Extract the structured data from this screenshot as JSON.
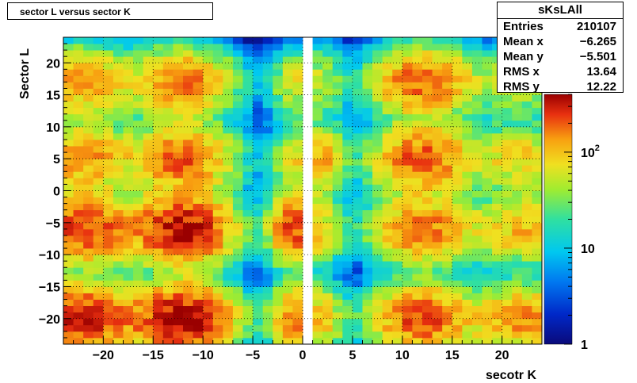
{
  "title": "sector L versus sector K",
  "stats": {
    "name": "sKsLAll",
    "rows": [
      {
        "label": "Entries",
        "value": "210107"
      },
      {
        "label": "Mean x",
        "value": "−6.265"
      },
      {
        "label": "Mean y",
        "value": "−5.501"
      },
      {
        "label": "RMS x",
        "value": "13.64"
      },
      {
        "label": "RMS y",
        "value": "12.22"
      }
    ]
  },
  "chart_data": {
    "type": "heatmap",
    "title": "sector L versus sector K",
    "xlabel": "secotr K",
    "ylabel": "Sector L",
    "xlim": [
      -24,
      24
    ],
    "ylim": [
      -24,
      24
    ],
    "xticks": [
      "−20",
      "−15",
      "−10",
      "−5",
      "0",
      "5",
      "10",
      "15",
      "20"
    ],
    "yticks": [
      "−20",
      "−15",
      "−10",
      "−5",
      "0",
      "5",
      "10",
      "15",
      "20"
    ],
    "z_scale": "log",
    "zlim": [
      1,
      400
    ],
    "colorbar_ticks": [
      "1",
      "10",
      "10^2"
    ],
    "grid": true,
    "cluster_centers_x": [
      -22,
      -12,
      -1,
      2,
      12,
      22
    ],
    "cluster_centers_y": [
      -20,
      -6,
      5,
      17
    ],
    "cluster_peaks": [
      [
        300,
        380,
        150,
        90,
        230,
        150
      ],
      [
        260,
        350,
        220,
        70,
        180,
        110
      ],
      [
        150,
        200,
        60,
        120,
        210,
        90
      ],
      [
        140,
        170,
        60,
        50,
        200,
        60
      ]
    ]
  }
}
